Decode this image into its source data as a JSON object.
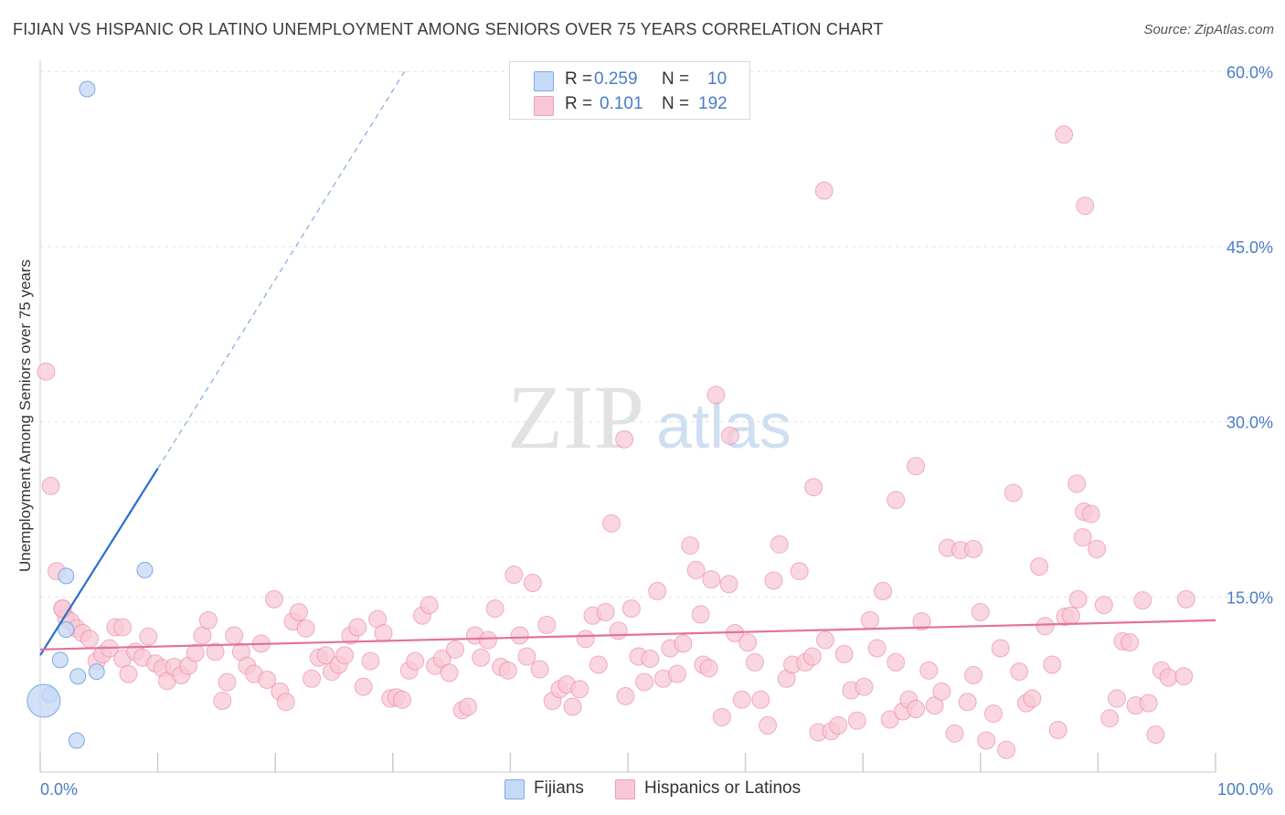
{
  "title": "FIJIAN VS HISPANIC OR LATINO UNEMPLOYMENT AMONG SENIORS OVER 75 YEARS CORRELATION CHART",
  "source": "Source: ZipAtlas.com",
  "watermark": {
    "zip": "ZIP",
    "atlas": "atlas"
  },
  "colors": {
    "fijians": "#7aaae6",
    "fijians_fill": "#c7daf5",
    "hispanics": "#e7789c",
    "hispanics_fill": "#f8c8d6",
    "trend_fijians": "#2a6fc9",
    "trend_hispanics": "#e2739a",
    "tick_text": "#4a7cc7",
    "grid": "#e3e3e3"
  },
  "legend": {
    "rows": [
      {
        "r_label": "R =",
        "r_value": "0.259",
        "n_label": "N =",
        "n_value": "10"
      },
      {
        "r_label": "R =",
        "r_value": "0.101",
        "n_label": "N =",
        "n_value": "192"
      }
    ]
  },
  "bottom_legend": {
    "fijians": "Fijians",
    "hispanics": "Hispanics or Latinos"
  },
  "chart_data": {
    "type": "scatter",
    "title": "FIJIAN VS HISPANIC OR LATINO UNEMPLOYMENT AMONG SENIORS OVER 75 YEARS CORRELATION CHART",
    "xlabel": "",
    "ylabel": "Unemployment Among Seniors over 75 years",
    "xlim": [
      0,
      100
    ],
    "ylim": [
      0,
      63
    ],
    "x_tick_labels": [
      "0.0%",
      "100.0%"
    ],
    "y_ticks": [
      15,
      30,
      45,
      60
    ],
    "y_tick_labels": [
      "15.0%",
      "30.0%",
      "45.0%",
      "60.0%"
    ],
    "grid": "horizontal dashed",
    "series": [
      {
        "name": "Fijians",
        "r": 0.259,
        "n": 10,
        "trend": {
          "x0": 0,
          "y0": 10.0,
          "x1": 10,
          "y1": 26.0,
          "dash_to_x": 31,
          "dash_to_y": 60.0
        },
        "points": [
          [
            4,
            58.5
          ],
          [
            2.2,
            16.8
          ],
          [
            8.9,
            17.3
          ],
          [
            2.2,
            12.2
          ],
          [
            1.7,
            9.6
          ],
          [
            3.2,
            8.2
          ],
          [
            4.8,
            8.6
          ],
          [
            0.8,
            6.6
          ],
          [
            0.3,
            6.1
          ],
          [
            3.1,
            2.7
          ]
        ]
      },
      {
        "name": "Hispanics or Latinos",
        "r": 0.101,
        "n": 192,
        "trend": {
          "x0": 0,
          "y0": 10.5,
          "x1": 100,
          "y1": 13.0
        },
        "points": [
          [
            0.5,
            34.3
          ],
          [
            0.9,
            24.5
          ],
          [
            1.4,
            17.2
          ],
          [
            1.9,
            14.0
          ],
          [
            2.2,
            13.2
          ],
          [
            2.6,
            12.9
          ],
          [
            3.1,
            12.3
          ],
          [
            3.6,
            11.9
          ],
          [
            4.2,
            11.4
          ],
          [
            4.8,
            9.5
          ],
          [
            5.3,
            10.1
          ],
          [
            5.9,
            10.6
          ],
          [
            6.4,
            12.4
          ],
          [
            7.0,
            9.7
          ],
          [
            7.5,
            8.4
          ],
          [
            8.1,
            10.3
          ],
          [
            8.7,
            9.8
          ],
          [
            9.2,
            11.6
          ],
          [
            9.8,
            9.3
          ],
          [
            10.4,
            8.9
          ],
          [
            10.8,
            7.8
          ],
          [
            11.4,
            9.0
          ],
          [
            12.0,
            8.3
          ],
          [
            12.6,
            9.1
          ],
          [
            13.2,
            10.2
          ],
          [
            13.8,
            11.7
          ],
          [
            14.3,
            13.0
          ],
          [
            14.9,
            10.3
          ],
          [
            15.5,
            6.1
          ],
          [
            15.9,
            7.7
          ],
          [
            16.5,
            11.7
          ],
          [
            17.1,
            10.3
          ],
          [
            17.6,
            9.1
          ],
          [
            18.2,
            8.4
          ],
          [
            18.8,
            11.0
          ],
          [
            19.3,
            7.9
          ],
          [
            19.9,
            14.8
          ],
          [
            20.4,
            6.9
          ],
          [
            20.9,
            6.0
          ],
          [
            21.5,
            12.9
          ],
          [
            22.0,
            13.7
          ],
          [
            22.6,
            12.3
          ],
          [
            23.1,
            8.0
          ],
          [
            23.7,
            9.8
          ],
          [
            24.3,
            10.0
          ],
          [
            24.8,
            8.6
          ],
          [
            25.4,
            9.2
          ],
          [
            25.9,
            10.0
          ],
          [
            26.4,
            11.7
          ],
          [
            27.0,
            12.4
          ],
          [
            27.5,
            7.3
          ],
          [
            28.1,
            9.5
          ],
          [
            28.7,
            13.1
          ],
          [
            29.2,
            11.9
          ],
          [
            29.8,
            6.3
          ],
          [
            30.3,
            6.4
          ],
          [
            30.8,
            6.2
          ],
          [
            31.4,
            8.7
          ],
          [
            31.9,
            9.5
          ],
          [
            32.5,
            13.4
          ],
          [
            33.1,
            14.3
          ],
          [
            33.6,
            9.1
          ],
          [
            34.2,
            9.7
          ],
          [
            34.8,
            8.5
          ],
          [
            35.3,
            10.5
          ],
          [
            35.9,
            5.3
          ],
          [
            36.4,
            5.6
          ],
          [
            37.0,
            11.7
          ],
          [
            37.5,
            9.8
          ],
          [
            38.1,
            11.3
          ],
          [
            38.7,
            14.0
          ],
          [
            39.2,
            9.0
          ],
          [
            39.8,
            8.7
          ],
          [
            40.3,
            16.9
          ],
          [
            40.8,
            11.7
          ],
          [
            41.4,
            9.9
          ],
          [
            41.9,
            16.2
          ],
          [
            42.5,
            8.8
          ],
          [
            43.1,
            12.6
          ],
          [
            43.6,
            6.1
          ],
          [
            44.2,
            7.1
          ],
          [
            44.8,
            7.5
          ],
          [
            45.3,
            5.6
          ],
          [
            45.9,
            7.1
          ],
          [
            46.4,
            11.4
          ],
          [
            47.0,
            13.4
          ],
          [
            47.5,
            9.2
          ],
          [
            48.1,
            13.7
          ],
          [
            48.6,
            21.3
          ],
          [
            49.2,
            12.1
          ],
          [
            49.8,
            6.5
          ],
          [
            50.3,
            14.0
          ],
          [
            50.9,
            9.9
          ],
          [
            51.4,
            7.7
          ],
          [
            51.9,
            9.7
          ],
          [
            52.5,
            15.5
          ],
          [
            53.0,
            8.0
          ],
          [
            53.6,
            10.6
          ],
          [
            54.2,
            8.4
          ],
          [
            54.7,
            11.0
          ],
          [
            55.3,
            19.4
          ],
          [
            55.8,
            17.3
          ],
          [
            56.4,
            9.2
          ],
          [
            56.9,
            8.9
          ],
          [
            57.5,
            32.3
          ],
          [
            58.0,
            4.7
          ],
          [
            58.6,
            16.1
          ],
          [
            59.1,
            11.9
          ],
          [
            59.7,
            6.2
          ],
          [
            60.2,
            11.1
          ],
          [
            60.8,
            9.4
          ],
          [
            61.3,
            6.2
          ],
          [
            61.9,
            4.0
          ],
          [
            62.4,
            16.4
          ],
          [
            62.9,
            19.5
          ],
          [
            63.5,
            8.0
          ],
          [
            64.0,
            9.2
          ],
          [
            64.6,
            17.2
          ],
          [
            65.1,
            9.4
          ],
          [
            65.7,
            9.9
          ],
          [
            66.2,
            3.4
          ],
          [
            66.8,
            11.3
          ],
          [
            67.3,
            3.5
          ],
          [
            67.9,
            4.0
          ],
          [
            68.4,
            10.1
          ],
          [
            69.0,
            7.0
          ],
          [
            69.5,
            4.4
          ],
          [
            70.1,
            7.3
          ],
          [
            70.6,
            13.0
          ],
          [
            71.2,
            10.6
          ],
          [
            71.7,
            15.5
          ],
          [
            72.3,
            4.5
          ],
          [
            72.8,
            9.4
          ],
          [
            73.4,
            5.2
          ],
          [
            73.9,
            6.2
          ],
          [
            74.5,
            5.4
          ],
          [
            75.0,
            12.9
          ],
          [
            75.6,
            8.7
          ],
          [
            76.1,
            5.7
          ],
          [
            76.7,
            6.9
          ],
          [
            77.2,
            19.2
          ],
          [
            77.8,
            3.3
          ],
          [
            78.3,
            19.0
          ],
          [
            78.9,
            6.0
          ],
          [
            79.4,
            8.3
          ],
          [
            80.0,
            13.7
          ],
          [
            80.5,
            2.7
          ],
          [
            81.1,
            5.0
          ],
          [
            81.7,
            10.6
          ],
          [
            82.2,
            1.9
          ],
          [
            82.8,
            23.9
          ],
          [
            83.3,
            8.6
          ],
          [
            83.9,
            5.9
          ],
          [
            84.4,
            6.3
          ],
          [
            85.0,
            17.6
          ],
          [
            85.5,
            12.5
          ],
          [
            86.1,
            9.2
          ],
          [
            86.6,
            3.6
          ],
          [
            87.2,
            13.3
          ],
          [
            87.7,
            13.4
          ],
          [
            88.3,
            14.8
          ],
          [
            88.8,
            22.3
          ],
          [
            89.4,
            22.1
          ],
          [
            89.9,
            19.1
          ],
          [
            90.5,
            14.3
          ],
          [
            91.0,
            4.6
          ],
          [
            91.6,
            6.3
          ],
          [
            92.1,
            11.2
          ],
          [
            92.7,
            11.1
          ],
          [
            93.2,
            5.7
          ],
          [
            93.8,
            14.7
          ],
          [
            94.3,
            5.9
          ],
          [
            94.9,
            3.2
          ],
          [
            95.4,
            8.7
          ],
          [
            96.0,
            8.1
          ],
          [
            97.3,
            8.2
          ],
          [
            88.2,
            24.7
          ],
          [
            87.1,
            54.6
          ],
          [
            88.9,
            48.5
          ],
          [
            66.7,
            49.8
          ],
          [
            58.7,
            28.8
          ],
          [
            65.8,
            24.4
          ],
          [
            72.8,
            23.3
          ],
          [
            74.5,
            26.2
          ],
          [
            79.4,
            19.1
          ],
          [
            88.7,
            20.1
          ],
          [
            57.1,
            16.5
          ],
          [
            56.2,
            13.5
          ],
          [
            97.5,
            14.8
          ],
          [
            49.7,
            28.5
          ],
          [
            1.9,
            14.0
          ],
          [
            7.0,
            12.4
          ]
        ]
      }
    ]
  }
}
